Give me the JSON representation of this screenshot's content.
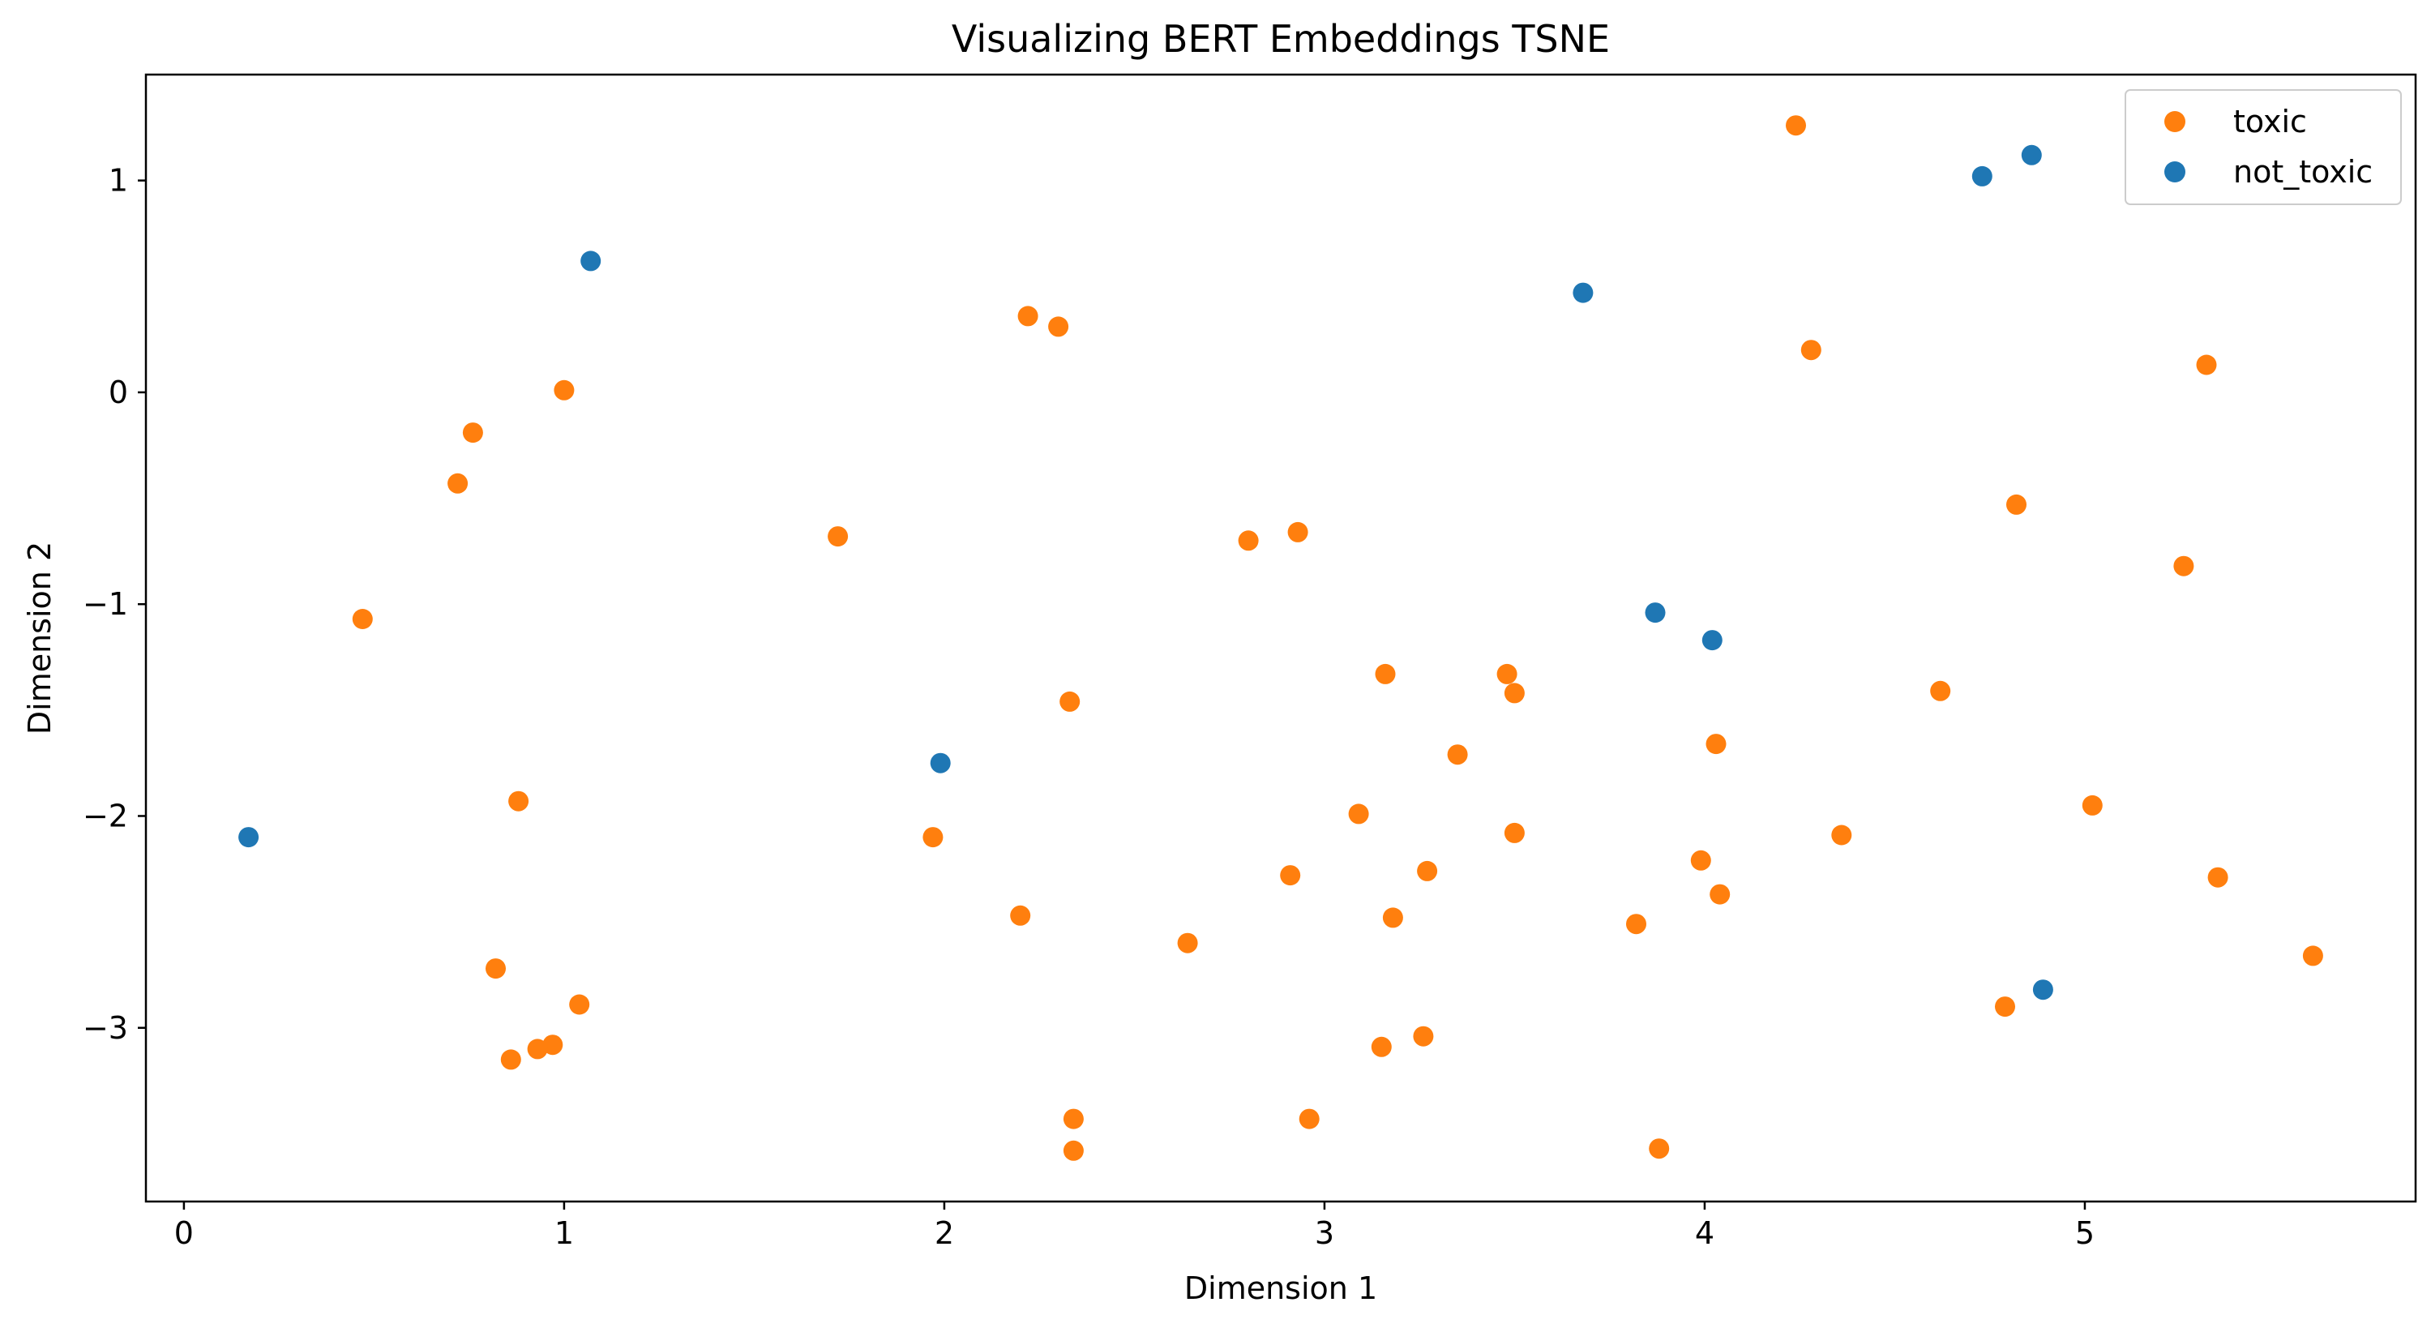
{
  "chart_data": {
    "type": "scatter",
    "title": "Visualizing BERT Embeddings TSNE",
    "xlabel": "Dimension 1",
    "ylabel": "Dimension 2",
    "xlim": [
      -0.1,
      5.87
    ],
    "ylim": [
      -3.82,
      1.5
    ],
    "xticks": [
      0,
      1,
      2,
      3,
      4,
      5
    ],
    "yticks": [
      1,
      0,
      -1,
      -2,
      -3
    ],
    "xtick_labels": [
      "0",
      "1",
      "2",
      "3",
      "4",
      "5"
    ],
    "ytick_labels": [
      "1",
      "0",
      "−1",
      "−2",
      "−3"
    ],
    "grid": false,
    "legend_position": "top-right",
    "series": [
      {
        "name": "toxic",
        "color": "#ff7f0e",
        "points": [
          [
            4.24,
            1.26
          ],
          [
            4.28,
            0.2
          ],
          [
            5.32,
            0.13
          ],
          [
            2.22,
            0.36
          ],
          [
            2.3,
            0.31
          ],
          [
            1.0,
            0.01
          ],
          [
            0.76,
            -0.19
          ],
          [
            0.72,
            -0.43
          ],
          [
            1.72,
            -0.68
          ],
          [
            2.8,
            -0.7
          ],
          [
            2.93,
            -0.66
          ],
          [
            4.82,
            -0.53
          ],
          [
            5.26,
            -0.82
          ],
          [
            0.47,
            -1.07
          ],
          [
            2.33,
            -1.46
          ],
          [
            3.16,
            -1.33
          ],
          [
            3.48,
            -1.33
          ],
          [
            3.5,
            -1.42
          ],
          [
            4.62,
            -1.41
          ],
          [
            3.35,
            -1.71
          ],
          [
            4.03,
            -1.66
          ],
          [
            0.88,
            -1.93
          ],
          [
            1.97,
            -2.1
          ],
          [
            3.09,
            -1.99
          ],
          [
            3.5,
            -2.08
          ],
          [
            4.36,
            -2.09
          ],
          [
            5.02,
            -1.95
          ],
          [
            3.99,
            -2.21
          ],
          [
            4.04,
            -2.37
          ],
          [
            2.91,
            -2.28
          ],
          [
            3.27,
            -2.26
          ],
          [
            5.35,
            -2.29
          ],
          [
            2.2,
            -2.47
          ],
          [
            3.18,
            -2.48
          ],
          [
            3.82,
            -2.51
          ],
          [
            2.64,
            -2.6
          ],
          [
            5.6,
            -2.66
          ],
          [
            0.82,
            -2.72
          ],
          [
            1.04,
            -2.89
          ],
          [
            4.79,
            -2.9
          ],
          [
            0.97,
            -3.08
          ],
          [
            0.93,
            -3.1
          ],
          [
            0.86,
            -3.15
          ],
          [
            3.15,
            -3.09
          ],
          [
            3.26,
            -3.04
          ],
          [
            2.34,
            -3.43
          ],
          [
            2.34,
            -3.58
          ],
          [
            2.96,
            -3.43
          ],
          [
            3.88,
            -3.57
          ]
        ]
      },
      {
        "name": "not_toxic",
        "color": "#1f77b4",
        "points": [
          [
            4.86,
            1.12
          ],
          [
            4.73,
            1.02
          ],
          [
            1.07,
            0.62
          ],
          [
            3.68,
            0.47
          ],
          [
            3.87,
            -1.04
          ],
          [
            4.02,
            -1.17
          ],
          [
            1.99,
            -1.75
          ],
          [
            0.17,
            -2.1
          ],
          [
            4.89,
            -2.82
          ]
        ]
      }
    ],
    "legend_order": [
      "toxic",
      "not_toxic"
    ]
  }
}
